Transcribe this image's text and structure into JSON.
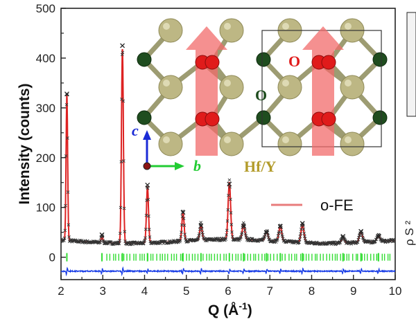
{
  "chart_data": {
    "type": "line",
    "title": "",
    "xlabel": "Q (Å-1)",
    "xlabel_main": "Q (Å",
    "xlabel_sup": "-1",
    "xlabel_close": ")",
    "ylabel": "Intensity (counts)",
    "xlim": [
      2,
      10
    ],
    "ylim": [
      -45,
      500
    ],
    "xticks": [
      "2",
      "3",
      "4",
      "5",
      "6",
      "7",
      "8",
      "9",
      "10"
    ],
    "yticks": [
      "0",
      "100",
      "200",
      "300",
      "400",
      "500"
    ],
    "ytick_values": [
      0,
      100,
      200,
      300,
      400,
      500
    ],
    "legend": [
      {
        "label": "o-FE",
        "style": "line",
        "color": "#e87c7c",
        "position": "right-middle"
      }
    ],
    "background_level": 30,
    "peaks": [
      {
        "q": 2.14,
        "observed": 328,
        "calculated": 322
      },
      {
        "q": 2.98,
        "observed": 45,
        "calculated": 42
      },
      {
        "q": 3.47,
        "observed": 425,
        "calculated": 420
      },
      {
        "q": 4.07,
        "observed": 145,
        "calculated": 143
      },
      {
        "q": 4.92,
        "observed": 90,
        "calculated": 86
      },
      {
        "q": 5.35,
        "observed": 63,
        "calculated": 60
      },
      {
        "q": 6.03,
        "observed": 147,
        "calculated": 144
      },
      {
        "q": 6.37,
        "observed": 62,
        "calculated": 60
      },
      {
        "q": 6.92,
        "observed": 50,
        "calculated": 48
      },
      {
        "q": 7.25,
        "observed": 62,
        "calculated": 60
      },
      {
        "q": 7.78,
        "observed": 68,
        "calculated": 65
      },
      {
        "q": 8.75,
        "observed": 42,
        "calculated": 40
      },
      {
        "q": 9.18,
        "observed": 52,
        "calculated": 50
      },
      {
        "q": 9.6,
        "observed": 42,
        "calculated": 40
      }
    ],
    "reflection_tick_level": 0,
    "difference_offset": -28,
    "series": [
      {
        "name": "observed",
        "marker": "x",
        "color": "#333333"
      },
      {
        "name": "calculated (o-FE)",
        "style": "line",
        "color": "#dd2222"
      },
      {
        "name": "Bragg positions",
        "style": "ticks",
        "color": "#33dd33"
      },
      {
        "name": "difference",
        "style": "line",
        "color": "#1a3ee6"
      }
    ]
  },
  "inset": {
    "description_labels": {
      "oxygen": "O",
      "hafnium": "Hf/Y",
      "axis_c": "c",
      "axis_b": "b"
    },
    "colors": {
      "hf_atom": "#bdb784",
      "o_atom": "#e01b1b",
      "bond_atom": "#1f4d1f",
      "arrow": "#f26b6b",
      "label_o_red": "#e01b1b",
      "label_o_green": "#1f4d1f",
      "label_hf": "#b29b2a",
      "axis_c": "#1a2bd6",
      "axis_b": "#22cc33"
    }
  },
  "right_edge_fragment": {
    "text": "ρ S ²"
  }
}
